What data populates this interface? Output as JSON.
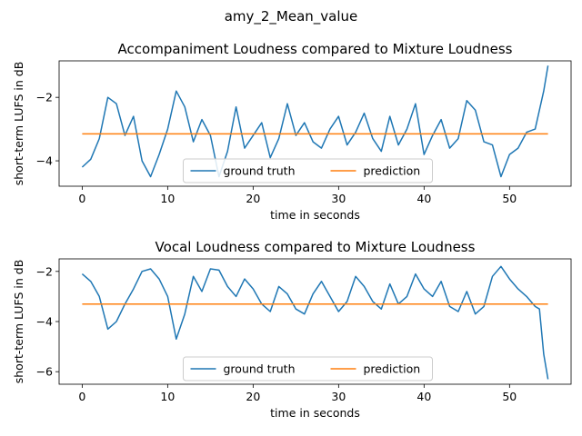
{
  "figure": {
    "suptitle": "amy_2_Mean_value"
  },
  "colors": {
    "ground_truth": "#1f77b4",
    "prediction": "#ff7f0e"
  },
  "chart_data": [
    {
      "type": "line",
      "title": "Accompaniment Loudness compared to Mixture Loudness",
      "xlabel": "time in seconds",
      "ylabel": "short-term LUFS in dB",
      "xlim": [
        -2.7,
        57.2
      ],
      "ylim": [
        -4.8,
        -0.85
      ],
      "xticks": [
        0,
        10,
        20,
        30,
        40,
        50
      ],
      "yticks": [
        -4,
        -2
      ],
      "grid": false,
      "legend": "lower-center",
      "series": [
        {
          "name": "ground truth",
          "x": [
            0,
            1,
            2,
            3,
            4,
            5,
            6,
            7,
            8,
            9,
            10,
            11,
            12,
            13,
            14,
            15,
            16,
            17,
            18,
            19,
            20,
            21,
            22,
            23,
            24,
            25,
            26,
            27,
            28,
            29,
            30,
            31,
            32,
            33,
            34,
            35,
            36,
            37,
            38,
            39,
            40,
            41,
            42,
            43,
            44,
            45,
            46,
            47,
            48,
            49,
            50,
            51,
            52,
            53,
            54,
            54.5
          ],
          "y": [
            -4.2,
            -3.95,
            -3.3,
            -2.0,
            -2.2,
            -3.2,
            -2.6,
            -4.0,
            -4.5,
            -3.8,
            -3.0,
            -1.8,
            -2.3,
            -3.4,
            -2.7,
            -3.2,
            -4.5,
            -3.7,
            -2.3,
            -3.6,
            -3.2,
            -2.8,
            -3.9,
            -3.3,
            -2.2,
            -3.2,
            -2.8,
            -3.4,
            -3.6,
            -3.0,
            -2.6,
            -3.5,
            -3.1,
            -2.5,
            -3.3,
            -3.7,
            -2.6,
            -3.5,
            -3.0,
            -2.2,
            -3.8,
            -3.2,
            -2.7,
            -3.6,
            -3.3,
            -2.1,
            -2.4,
            -3.4,
            -3.5,
            -4.5,
            -3.8,
            -3.6,
            -3.1,
            -3.0,
            -1.8,
            -1.0
          ]
        },
        {
          "name": "prediction",
          "x": [
            0,
            54.5
          ],
          "y": [
            -3.15,
            -3.15
          ]
        }
      ]
    },
    {
      "type": "line",
      "title": "Vocal Loudness compared to Mixture Loudness",
      "xlabel": "time in seconds",
      "ylabel": "short-term LUFS in dB",
      "xlim": [
        -2.7,
        57.2
      ],
      "ylim": [
        -6.5,
        -1.5
      ],
      "xticks": [
        0,
        10,
        20,
        30,
        40,
        50
      ],
      "yticks": [
        -6,
        -4,
        -2
      ],
      "grid": false,
      "legend": "lower-center",
      "series": [
        {
          "name": "ground truth",
          "x": [
            0,
            1,
            2,
            3,
            4,
            5,
            6,
            7,
            8,
            9,
            10,
            11,
            12,
            13,
            14,
            15,
            16,
            17,
            18,
            19,
            20,
            21,
            22,
            23,
            24,
            25,
            26,
            27,
            28,
            29,
            30,
            31,
            32,
            33,
            34,
            35,
            36,
            37,
            38,
            39,
            40,
            41,
            42,
            43,
            44,
            45,
            46,
            47,
            48,
            49,
            50,
            51,
            52,
            53,
            53.5,
            54,
            54.5
          ],
          "y": [
            -2.1,
            -2.4,
            -3.0,
            -4.3,
            -4.0,
            -3.3,
            -2.7,
            -2.0,
            -1.9,
            -2.3,
            -3.0,
            -4.7,
            -3.7,
            -2.2,
            -2.8,
            -1.9,
            -1.95,
            -2.6,
            -3.0,
            -2.3,
            -2.7,
            -3.3,
            -3.6,
            -2.6,
            -2.9,
            -3.5,
            -3.7,
            -2.9,
            -2.4,
            -3.0,
            -3.6,
            -3.2,
            -2.2,
            -2.6,
            -3.2,
            -3.5,
            -2.5,
            -3.3,
            -3.0,
            -2.1,
            -2.7,
            -3.0,
            -2.4,
            -3.4,
            -3.6,
            -2.8,
            -3.7,
            -3.4,
            -2.2,
            -1.8,
            -2.3,
            -2.7,
            -3.0,
            -3.4,
            -3.5,
            -5.3,
            -6.3
          ]
        },
        {
          "name": "prediction",
          "x": [
            0,
            54.5
          ],
          "y": [
            -3.3,
            -3.3
          ]
        }
      ]
    }
  ]
}
